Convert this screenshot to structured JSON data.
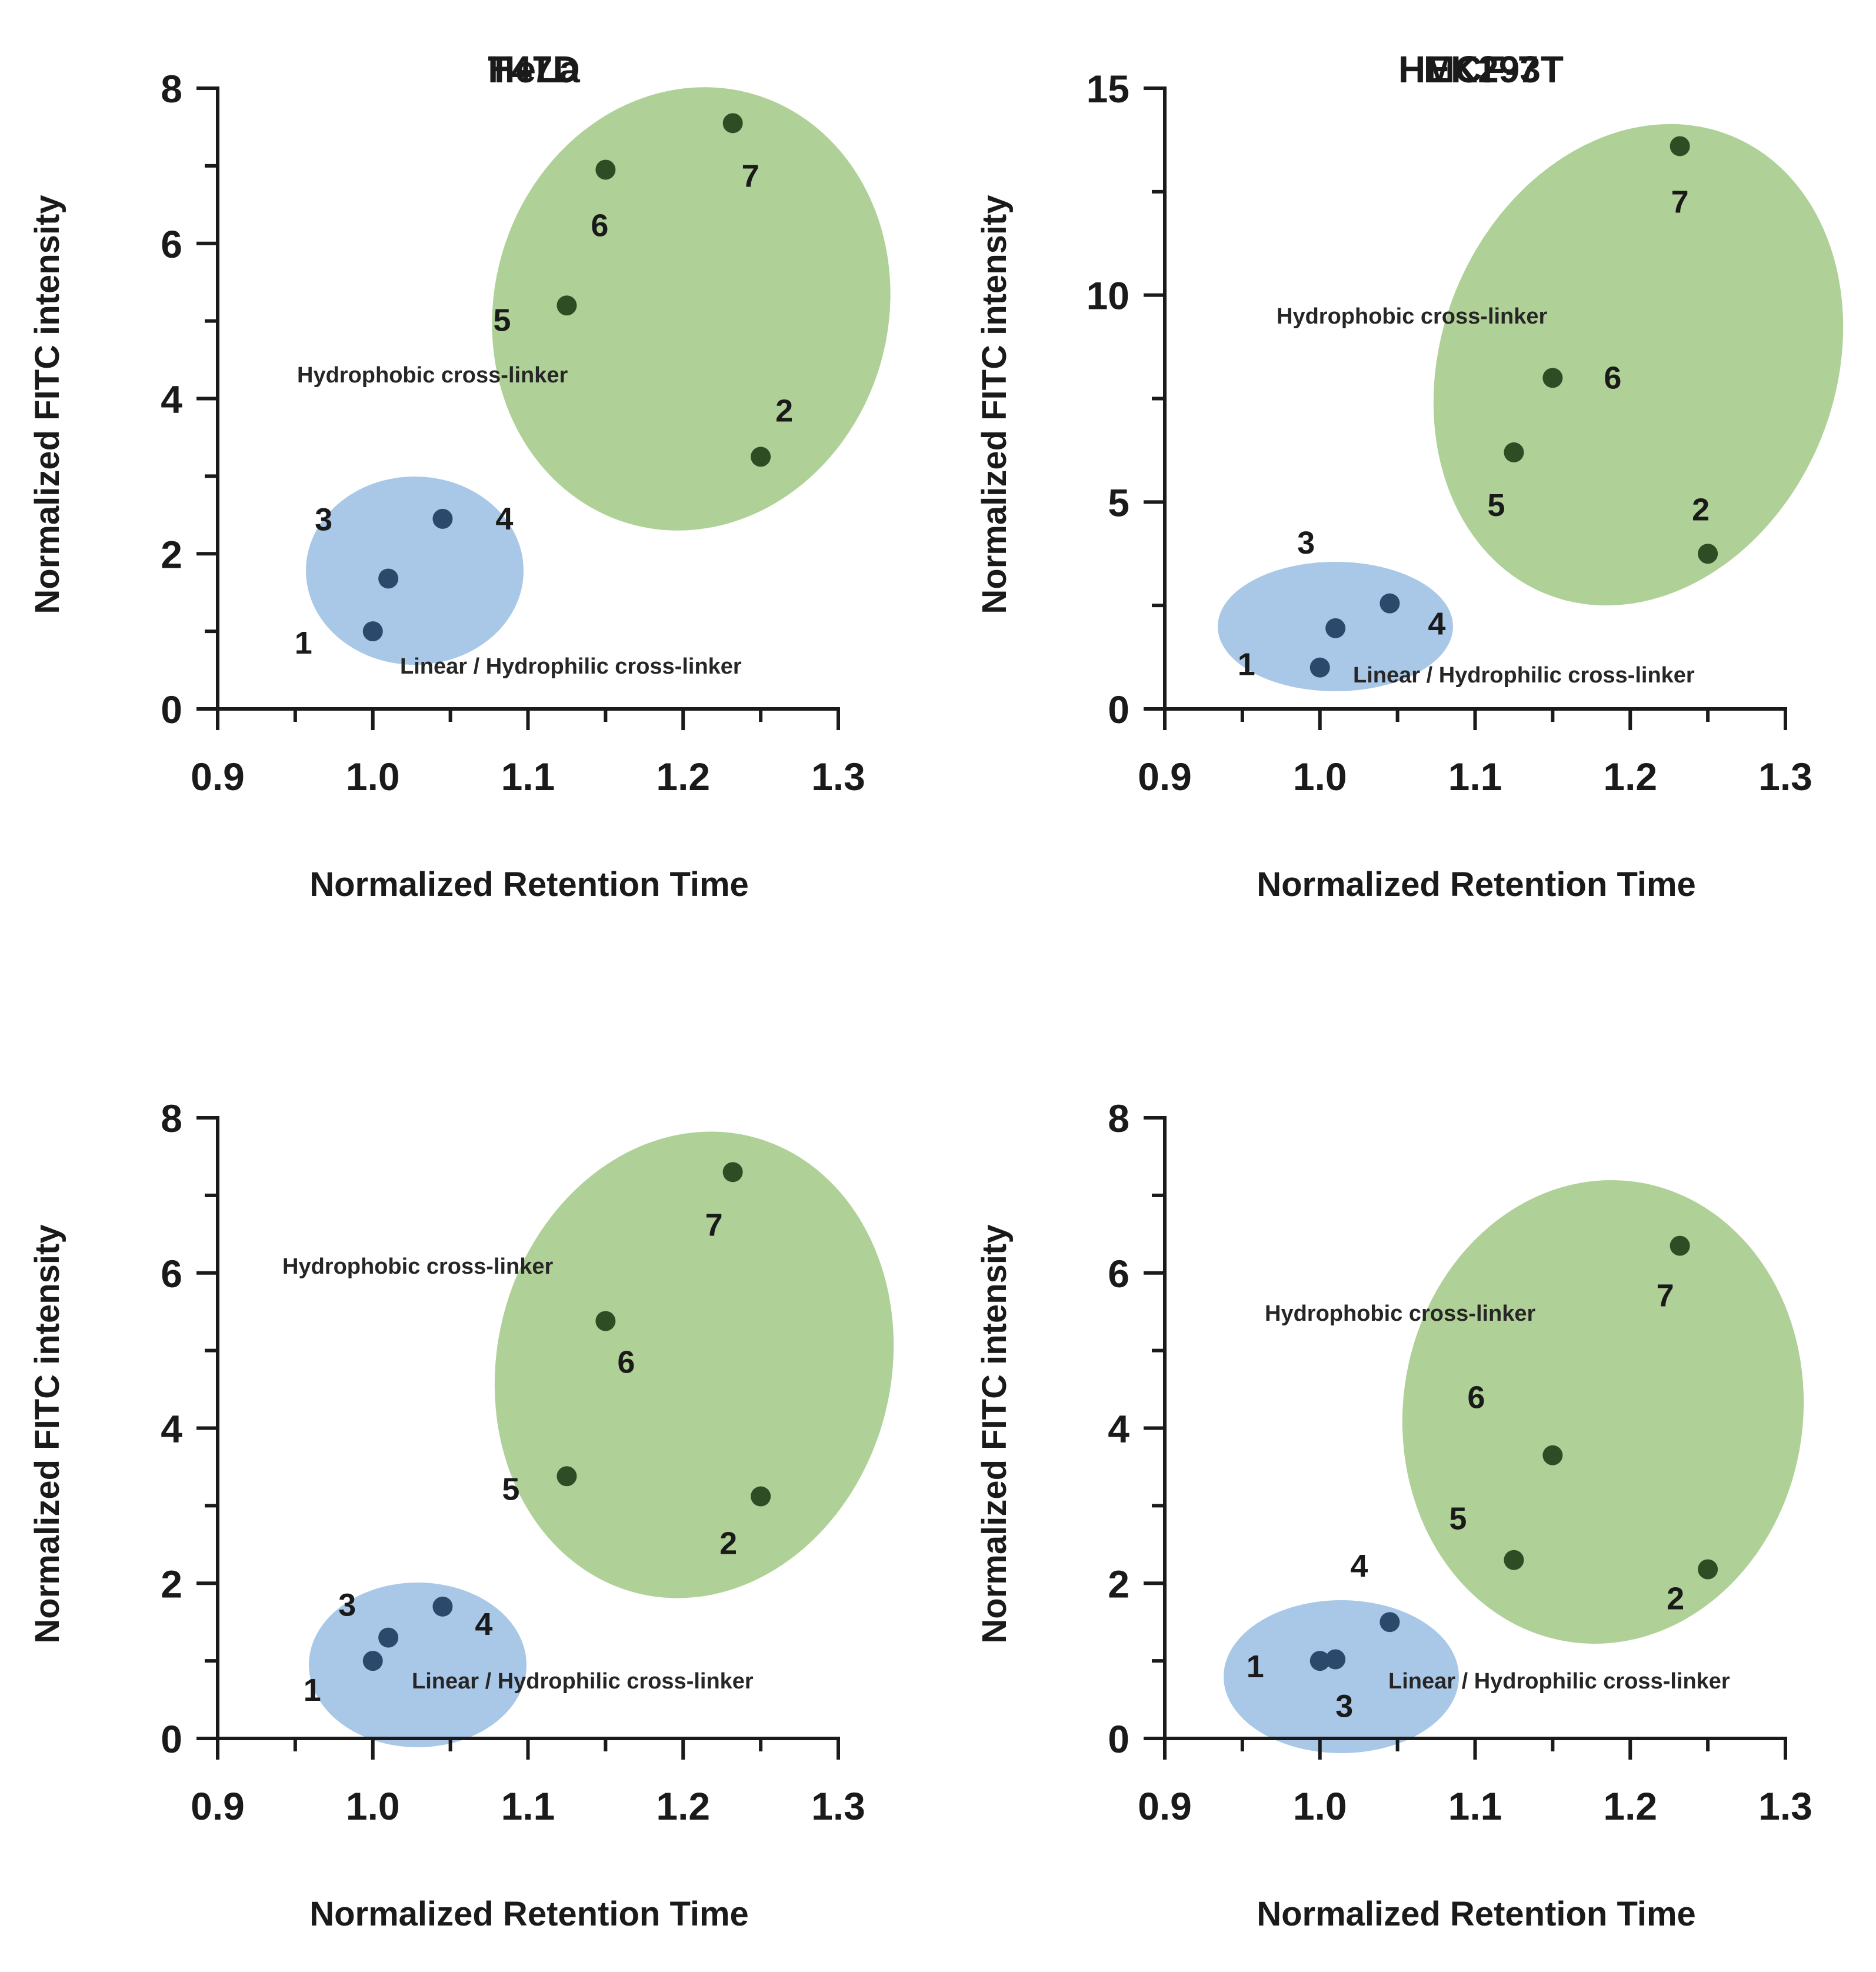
{
  "chart_data": [
    {
      "type": "scatter",
      "title": "T47D",
      "xlabel": "Normalized Retention Time",
      "ylabel": "Normalized FITC intensity",
      "xlim": [
        0.9,
        1.3
      ],
      "ylim": [
        0,
        8
      ],
      "xticks": [
        "0.9",
        "1.0",
        "1.1",
        "1.2",
        "1.3"
      ],
      "yticks": [
        "0",
        "2",
        "4",
        "6",
        "8"
      ],
      "points": [
        {
          "label": "1",
          "x": 1.0,
          "y": 1.0,
          "group": "linear"
        },
        {
          "label": "3",
          "x": 1.01,
          "y": 1.68,
          "group": "linear"
        },
        {
          "label": "4",
          "x": 1.045,
          "y": 2.45,
          "group": "linear"
        },
        {
          "label": "5",
          "x": 1.125,
          "y": 5.2,
          "group": "hydrophobic"
        },
        {
          "label": "6",
          "x": 1.15,
          "y": 6.95,
          "group": "hydrophobic"
        },
        {
          "label": "7",
          "x": 1.232,
          "y": 7.55,
          "group": "hydrophobic"
        },
        {
          "label": "2",
          "x": 1.25,
          "y": 3.25,
          "group": "hydrophobic"
        }
      ],
      "groups": [
        {
          "id": "linear",
          "name": "Linear / Hydrophilic cross-linker"
        },
        {
          "id": "hydrophobic",
          "name": "Hydrophobic cross-linker"
        }
      ]
    },
    {
      "type": "scatter",
      "title": "MCF-7",
      "xlabel": "Normalized Retention Time",
      "ylabel": "Normalized FITC intensity",
      "xlim": [
        0.9,
        1.3
      ],
      "ylim": [
        0,
        15
      ],
      "xticks": [
        "0.9",
        "1.0",
        "1.1",
        "1.2",
        "1.3"
      ],
      "yticks": [
        "0",
        "5",
        "10",
        "15"
      ],
      "points": [
        {
          "label": "1",
          "x": 1.0,
          "y": 1.0,
          "group": "linear"
        },
        {
          "label": "3",
          "x": 1.01,
          "y": 1.95,
          "group": "linear"
        },
        {
          "label": "4",
          "x": 1.045,
          "y": 2.55,
          "group": "linear"
        },
        {
          "label": "5",
          "x": 1.125,
          "y": 6.2,
          "group": "hydrophobic"
        },
        {
          "label": "6",
          "x": 1.15,
          "y": 8.0,
          "group": "hydrophobic"
        },
        {
          "label": "7",
          "x": 1.232,
          "y": 13.6,
          "group": "hydrophobic"
        },
        {
          "label": "2",
          "x": 1.25,
          "y": 3.75,
          "group": "hydrophobic"
        }
      ],
      "groups": [
        {
          "id": "linear",
          "name": "Linear / Hydrophilic cross-linker"
        },
        {
          "id": "hydrophobic",
          "name": "Hydrophobic cross-linker"
        }
      ]
    },
    {
      "type": "scatter",
      "title": "HeLa",
      "xlabel": "Normalized Retention Time",
      "ylabel": "Normalized FITC intensity",
      "xlim": [
        0.9,
        1.3
      ],
      "ylim": [
        0,
        8
      ],
      "xticks": [
        "0.9",
        "1.0",
        "1.1",
        "1.2",
        "1.3"
      ],
      "yticks": [
        "0",
        "2",
        "4",
        "6",
        "8"
      ],
      "points": [
        {
          "label": "1",
          "x": 1.0,
          "y": 1.0,
          "group": "linear"
        },
        {
          "label": "3",
          "x": 1.01,
          "y": 1.3,
          "group": "linear"
        },
        {
          "label": "4",
          "x": 1.045,
          "y": 1.7,
          "group": "linear"
        },
        {
          "label": "5",
          "x": 1.125,
          "y": 3.38,
          "group": "hydrophobic"
        },
        {
          "label": "6",
          "x": 1.15,
          "y": 5.38,
          "group": "hydrophobic"
        },
        {
          "label": "7",
          "x": 1.232,
          "y": 7.3,
          "group": "hydrophobic"
        },
        {
          "label": "2",
          "x": 1.25,
          "y": 3.12,
          "group": "hydrophobic"
        }
      ],
      "groups": [
        {
          "id": "linear",
          "name": "Linear / Hydrophilic cross-linker"
        },
        {
          "id": "hydrophobic",
          "name": "Hydrophobic cross-linker"
        }
      ]
    },
    {
      "type": "scatter",
      "title": "HEK293T",
      "xlabel": "Normalized Retention Time",
      "ylabel": "Normalized FITC intensity",
      "xlim": [
        0.9,
        1.3
      ],
      "ylim": [
        0,
        8
      ],
      "xticks": [
        "0.9",
        "1.0",
        "1.1",
        "1.2",
        "1.3"
      ],
      "yticks": [
        "0",
        "2",
        "4",
        "6",
        "8"
      ],
      "points": [
        {
          "label": "1",
          "x": 1.0,
          "y": 1.0,
          "group": "linear"
        },
        {
          "label": "3",
          "x": 1.01,
          "y": 1.02,
          "group": "linear"
        },
        {
          "label": "4",
          "x": 1.045,
          "y": 1.5,
          "group": "linear"
        },
        {
          "label": "5",
          "x": 1.125,
          "y": 2.3,
          "group": "hydrophobic"
        },
        {
          "label": "6",
          "x": 1.15,
          "y": 3.65,
          "group": "hydrophobic"
        },
        {
          "label": "7",
          "x": 1.232,
          "y": 6.35,
          "group": "hydrophobic"
        },
        {
          "label": "2",
          "x": 1.25,
          "y": 2.18,
          "group": "hydrophobic"
        }
      ],
      "groups": [
        {
          "id": "linear",
          "name": "Linear / Hydrophilic cross-linker"
        },
        {
          "id": "hydrophobic",
          "name": "Hydrophobic cross-linker"
        }
      ]
    }
  ],
  "colors": {
    "linear_fill": "#a9c8e8",
    "hydrophobic_fill": "#afd197",
    "linear_point": "#2b4a6b",
    "hydrophobic_point": "#2e4d24",
    "axis": "#1a1a1a"
  }
}
